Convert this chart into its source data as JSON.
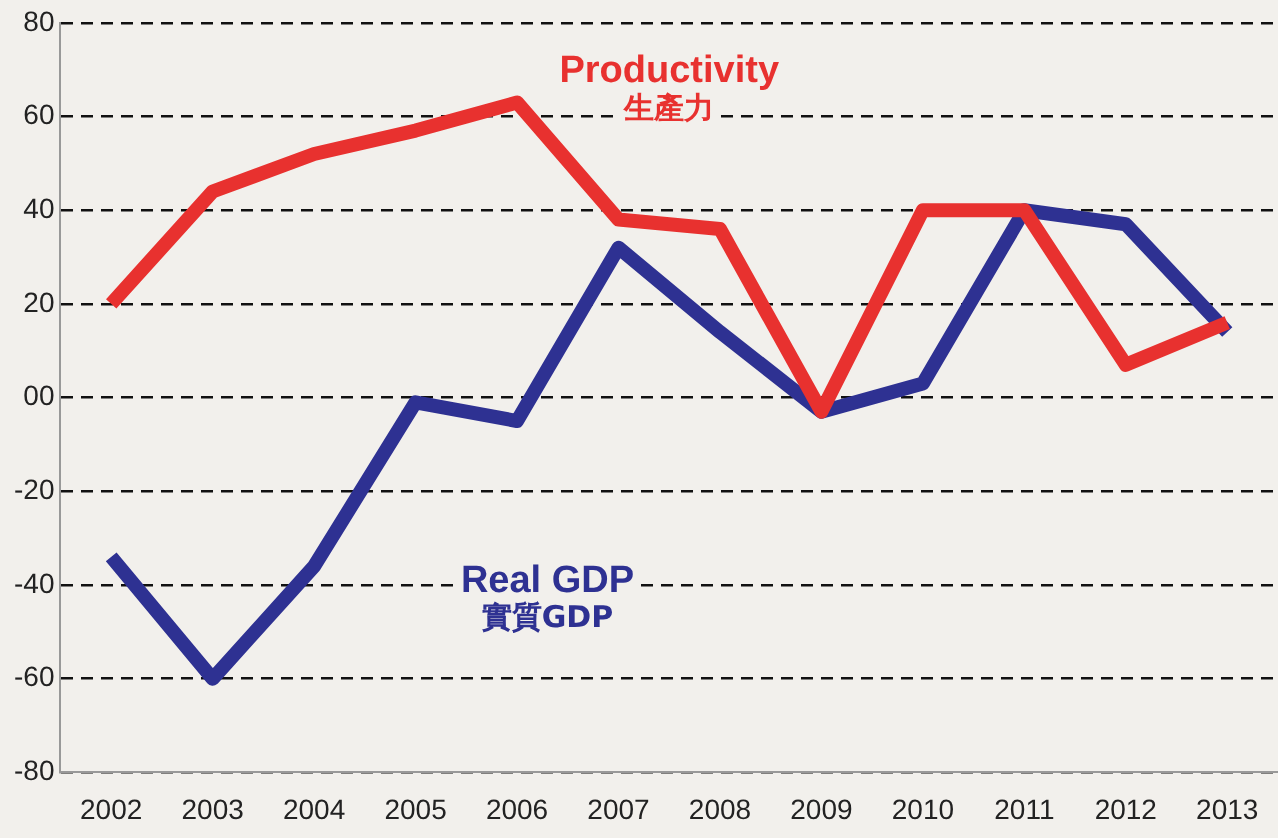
{
  "chart_data": {
    "type": "line",
    "categories": [
      "2002",
      "2003",
      "2004",
      "2005",
      "2006",
      "2007",
      "2008",
      "2009",
      "2010",
      "2011",
      "2012",
      "2013"
    ],
    "series": [
      {
        "name": "Productivity\n生產力",
        "color": "#e8312f",
        "values": [
          20,
          44,
          52,
          57,
          63,
          38,
          36,
          -3,
          40,
          40,
          7,
          16
        ]
      },
      {
        "name": "Real GDP\n實質GDP",
        "color": "#2e3192",
        "values": [
          -34,
          -60,
          -36,
          -1,
          -5,
          32,
          14,
          -3,
          3,
          40,
          37,
          14
        ]
      }
    ],
    "ylim": [
      -80,
      80
    ],
    "yticks": [
      -80,
      -60,
      -40,
      -20,
      {
        "value": 0,
        "label": "00"
      },
      20,
      40,
      60,
      80
    ],
    "grid": "y",
    "legend": false,
    "marker": "none",
    "line_style": "solid"
  }
}
